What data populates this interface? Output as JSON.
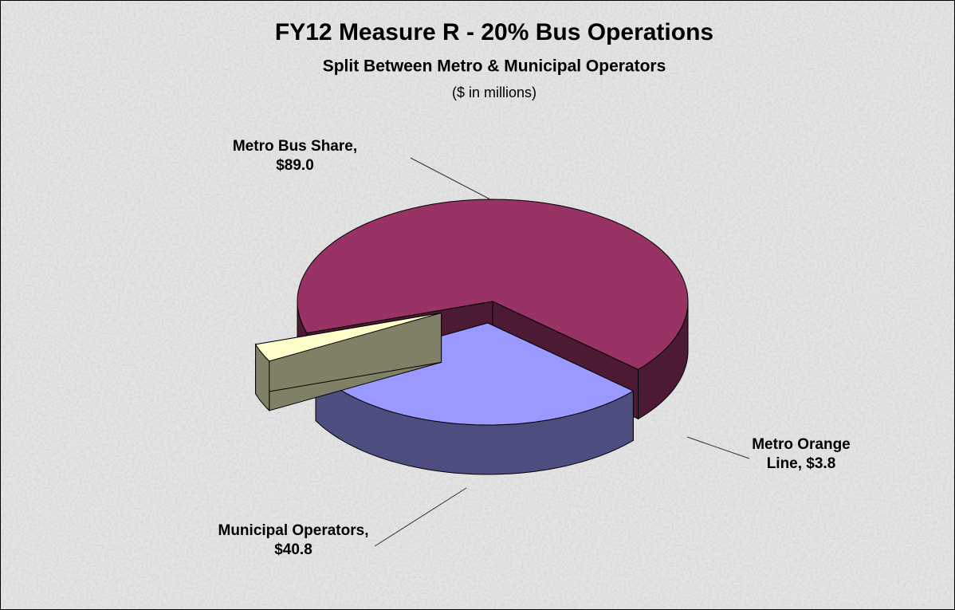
{
  "chart_data": {
    "type": "pie3d",
    "title": "FY12 Measure R - 20% Bus Operations",
    "subtitle": "Split Between Metro & Municipal Operators",
    "note": "($ in millions)",
    "categories": [
      "Metro Bus Share",
      "Municipal Operators",
      "Metro Orange Line"
    ],
    "values": [
      89.0,
      40.8,
      3.8
    ],
    "value_labels": [
      "Metro Bus Share, $89.0",
      "Municipal Operators, $40.8",
      "Metro Orange Line, $3.8"
    ],
    "colors": [
      "#993366",
      "#9999ff",
      "#ffffcc"
    ]
  }
}
